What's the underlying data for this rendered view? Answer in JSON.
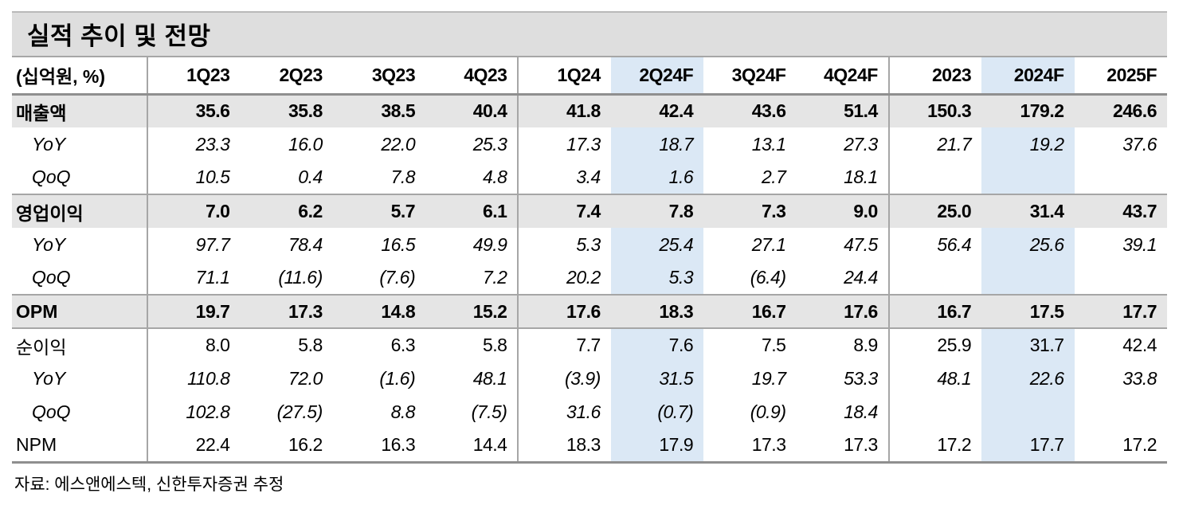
{
  "title": "실적 추이 및 전망",
  "source": "자료: 에스앤에스텍, 신한투자증권 추정",
  "colors": {
    "highlight_column": "#dbe8f5",
    "group_row_background": "#e5e5e5",
    "title_band_background": "#dedede",
    "grid_line": "#a6a6a6",
    "strong_line": "#8f8f8f"
  },
  "table": {
    "unit_label": "(십억원, %)",
    "columns": [
      "1Q23",
      "2Q23",
      "3Q23",
      "4Q23",
      "1Q24",
      "2Q24F",
      "3Q24F",
      "4Q24F",
      "2023",
      "2024F",
      "2025F"
    ],
    "highlight_cols": [
      5,
      9
    ],
    "divider_after_cols": [
      3,
      7
    ],
    "separator_before_rows": [
      3,
      6,
      7
    ],
    "rows": [
      {
        "key": "revenue",
        "label": "매출액",
        "style": "group",
        "values": [
          "35.6",
          "35.8",
          "38.5",
          "40.4",
          "41.8",
          "42.4",
          "43.6",
          "51.4",
          "150.3",
          "179.2",
          "246.6"
        ]
      },
      {
        "key": "revenue-yoy",
        "label": "YoY",
        "style": "sub",
        "values": [
          "23.3",
          "16.0",
          "22.0",
          "25.3",
          "17.3",
          "18.7",
          "13.1",
          "27.3",
          "21.7",
          "19.2",
          "37.6"
        ]
      },
      {
        "key": "revenue-qoq",
        "label": "QoQ",
        "style": "sub",
        "values": [
          "10.5",
          "0.4",
          "7.8",
          "4.8",
          "3.4",
          "1.6",
          "2.7",
          "18.1",
          "",
          "",
          ""
        ]
      },
      {
        "key": "operating-profit",
        "label": "영업이익",
        "style": "group",
        "values": [
          "7.0",
          "6.2",
          "5.7",
          "6.1",
          "7.4",
          "7.8",
          "7.3",
          "9.0",
          "25.0",
          "31.4",
          "43.7"
        ]
      },
      {
        "key": "operating-profit-yoy",
        "label": "YoY",
        "style": "sub",
        "values": [
          "97.7",
          "78.4",
          "16.5",
          "49.9",
          "5.3",
          "25.4",
          "27.1",
          "47.5",
          "56.4",
          "25.6",
          "39.1"
        ]
      },
      {
        "key": "operating-profit-qoq",
        "label": "QoQ",
        "style": "sub",
        "values": [
          "71.1",
          "(11.6)",
          "(7.6)",
          "7.2",
          "20.2",
          "5.3",
          "(6.4)",
          "24.4",
          "",
          "",
          ""
        ]
      },
      {
        "key": "opm",
        "label": "OPM",
        "style": "group",
        "values": [
          "19.7",
          "17.3",
          "14.8",
          "15.2",
          "17.6",
          "18.3",
          "16.7",
          "17.6",
          "16.7",
          "17.5",
          "17.7"
        ]
      },
      {
        "key": "net-profit",
        "label": "순이익",
        "style": "plain",
        "values": [
          "8.0",
          "5.8",
          "6.3",
          "5.8",
          "7.7",
          "7.6",
          "7.5",
          "8.9",
          "25.9",
          "31.7",
          "42.4"
        ]
      },
      {
        "key": "net-profit-yoy",
        "label": "YoY",
        "style": "sub",
        "values": [
          "110.8",
          "72.0",
          "(1.6)",
          "48.1",
          "(3.9)",
          "31.5",
          "19.7",
          "53.3",
          "48.1",
          "22.6",
          "33.8"
        ]
      },
      {
        "key": "net-profit-qoq",
        "label": "QoQ",
        "style": "sub",
        "values": [
          "102.8",
          "(27.5)",
          "8.8",
          "(7.5)",
          "31.6",
          "(0.7)",
          "(0.9)",
          "18.4",
          "",
          "",
          ""
        ]
      },
      {
        "key": "npm",
        "label": "NPM",
        "style": "plain",
        "values": [
          "22.4",
          "16.2",
          "16.3",
          "14.4",
          "18.3",
          "17.9",
          "17.3",
          "17.3",
          "17.2",
          "17.7",
          "17.2"
        ]
      }
    ]
  }
}
